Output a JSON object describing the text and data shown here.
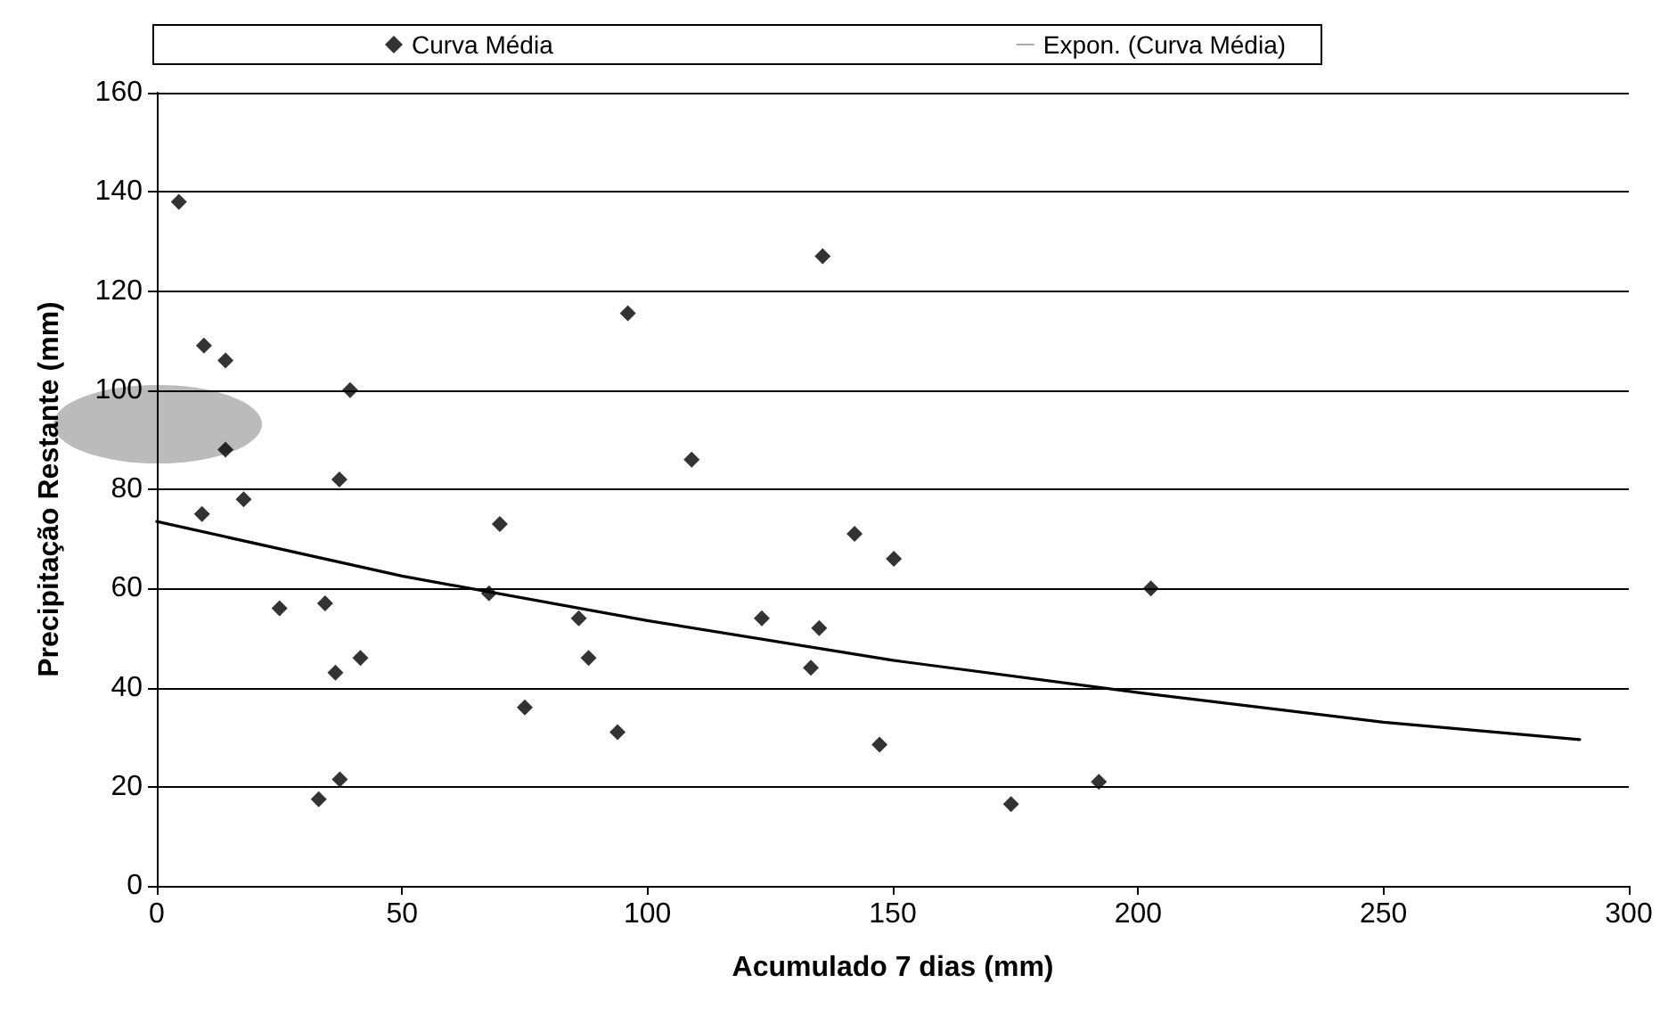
{
  "chart_data": {
    "type": "scatter",
    "xlabel": "Acumulado 7 dias (mm)",
    "ylabel": "Precipitação Restante (mm)",
    "xlim": [
      0,
      300
    ],
    "xticks": [
      0,
      50,
      100,
      150,
      200,
      250,
      300
    ],
    "ylim": [
      0,
      160
    ],
    "yticks": [
      0,
      20,
      40,
      60,
      80,
      100,
      120,
      140,
      160
    ],
    "grid": "y",
    "legend": "top",
    "marker": "diamond",
    "series": [
      {
        "name": "Curva Média",
        "type": "scatter",
        "color": "#000000",
        "x": [
          4.5,
          9.6,
          14,
          39.4,
          14,
          37.2,
          17.7,
          9.2,
          69.9,
          67.7,
          25,
          34.3,
          86,
          88,
          41.5,
          36.4,
          75,
          93.9,
          37.3,
          33,
          96,
          135.7,
          109,
          142.2,
          150.2,
          202.6,
          123.3,
          135,
          133.3,
          147.3,
          174.1,
          192
        ],
        "values": [
          138,
          109,
          106,
          100,
          88,
          82,
          78,
          75,
          73,
          59,
          56,
          57,
          54,
          46,
          46,
          43,
          36,
          31,
          21.5,
          17.5,
          115.5,
          127,
          86,
          71,
          66,
          60,
          54,
          52,
          44,
          28.5,
          16.5,
          21
        ]
      },
      {
        "name": "Expon. (Curva Média)",
        "type": "line",
        "marker": "none",
        "line_style": "solid",
        "color": "#000000",
        "x": [
          0,
          50,
          100,
          150,
          200,
          250,
          290
        ],
        "values": [
          73.5,
          62.5,
          53.5,
          45.5,
          39,
          33,
          29.5
        ]
      }
    ]
  }
}
